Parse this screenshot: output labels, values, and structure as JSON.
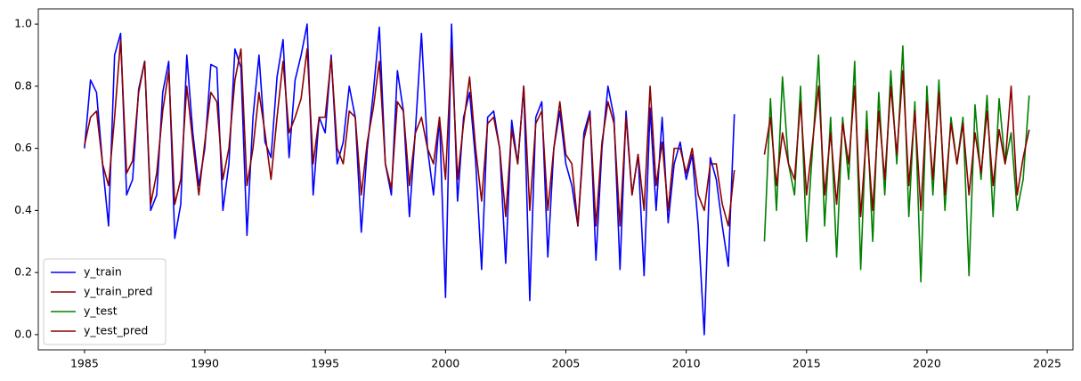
{
  "chart_data": {
    "type": "line",
    "xlim": [
      1983.08,
      2026.07
    ],
    "ylim": [
      -0.049,
      1.049
    ],
    "xticks": [
      1985,
      1990,
      1995,
      2000,
      2005,
      2010,
      2015,
      2020,
      2025
    ],
    "yticks": [
      {
        "value": 0,
        "label": "0.0"
      },
      0.2,
      0.4,
      0.6,
      0.8,
      {
        "value": 1,
        "label": "1.0"
      }
    ],
    "legend": "lower left",
    "series": [
      {
        "name": "y_train",
        "color": "#0000ff",
        "x": [
          1985,
          1985.25,
          1985.5,
          1985.75,
          1986,
          1986.25,
          1986.5,
          1986.75,
          1987,
          1987.25,
          1987.5,
          1987.75,
          1988,
          1988.25,
          1988.5,
          1988.75,
          1989,
          1989.25,
          1989.5,
          1989.75,
          1990,
          1990.25,
          1990.5,
          1990.75,
          1991,
          1991.25,
          1991.5,
          1991.75,
          1992,
          1992.25,
          1992.5,
          1992.75,
          1993,
          1993.25,
          1993.5,
          1993.75,
          1994,
          1994.25,
          1994.5,
          1994.75,
          1995,
          1995.25,
          1995.5,
          1995.75,
          1996,
          1996.25,
          1996.5,
          1996.75,
          1997,
          1997.25,
          1997.5,
          1997.75,
          1998,
          1998.25,
          1998.5,
          1998.75,
          1999,
          1999.25,
          1999.5,
          1999.75,
          2000,
          2000.25,
          2000.5,
          2000.75,
          2001,
          2001.25,
          2001.5,
          2001.75,
          2002,
          2002.25,
          2002.5,
          2002.75,
          2003,
          2003.25,
          2003.5,
          2003.75,
          2004,
          2004.25,
          2004.5,
          2004.75,
          2005,
          2005.25,
          2005.5,
          2005.75,
          2006,
          2006.25,
          2006.5,
          2006.75,
          2007,
          2007.25,
          2007.5,
          2007.75,
          2008,
          2008.25,
          2008.5,
          2008.75,
          2009,
          2009.25,
          2009.5,
          2009.75,
          2010,
          2010.25,
          2010.5,
          2010.75,
          2011,
          2011.25,
          2011.5,
          2011.75,
          2012
        ],
        "values": [
          0.6,
          0.82,
          0.78,
          0.55,
          0.35,
          0.9,
          0.97,
          0.45,
          0.5,
          0.79,
          0.88,
          0.4,
          0.45,
          0.78,
          0.88,
          0.31,
          0.42,
          0.9,
          0.65,
          0.48,
          0.6,
          0.87,
          0.86,
          0.4,
          0.55,
          0.92,
          0.86,
          0.32,
          0.7,
          0.9,
          0.62,
          0.57,
          0.83,
          0.95,
          0.57,
          0.82,
          0.9,
          1.0,
          0.45,
          0.7,
          0.65,
          0.9,
          0.55,
          0.62,
          0.8,
          0.7,
          0.33,
          0.6,
          0.78,
          0.99,
          0.55,
          0.45,
          0.85,
          0.72,
          0.38,
          0.66,
          0.97,
          0.6,
          0.45,
          0.7,
          0.12,
          1.0,
          0.43,
          0.7,
          0.78,
          0.56,
          0.21,
          0.7,
          0.72,
          0.6,
          0.23,
          0.69,
          0.55,
          0.8,
          0.11,
          0.7,
          0.75,
          0.25,
          0.6,
          0.72,
          0.55,
          0.48,
          0.35,
          0.65,
          0.72,
          0.24,
          0.6,
          0.8,
          0.7,
          0.21,
          0.72,
          0.45,
          0.58,
          0.19,
          0.73,
          0.4,
          0.7,
          0.36,
          0.55,
          0.62,
          0.5,
          0.58,
          0.35,
          0.0,
          0.57,
          0.5,
          0.35,
          0.22,
          0.71
        ]
      },
      {
        "name": "y_train_pred",
        "color": "#8b0000",
        "x": [
          1985,
          1985.25,
          1985.5,
          1985.75,
          1986,
          1986.25,
          1986.5,
          1986.75,
          1987,
          1987.25,
          1987.5,
          1987.75,
          1988,
          1988.25,
          1988.5,
          1988.75,
          1989,
          1989.25,
          1989.5,
          1989.75,
          1990,
          1990.25,
          1990.5,
          1990.75,
          1991,
          1991.25,
          1991.5,
          1991.75,
          1992,
          1992.25,
          1992.5,
          1992.75,
          1993,
          1993.25,
          1993.5,
          1993.75,
          1994,
          1994.25,
          1994.5,
          1994.75,
          1995,
          1995.25,
          1995.5,
          1995.75,
          1996,
          1996.25,
          1996.5,
          1996.75,
          1997,
          1997.25,
          1997.5,
          1997.75,
          1998,
          1998.25,
          1998.5,
          1998.75,
          1999,
          1999.25,
          1999.5,
          1999.75,
          2000,
          2000.25,
          2000.5,
          2000.75,
          2001,
          2001.25,
          2001.5,
          2001.75,
          2002,
          2002.25,
          2002.5,
          2002.75,
          2003,
          2003.25,
          2003.5,
          2003.75,
          2004,
          2004.25,
          2004.5,
          2004.75,
          2005,
          2005.25,
          2005.5,
          2005.75,
          2006,
          2006.25,
          2006.5,
          2006.75,
          2007,
          2007.25,
          2007.5,
          2007.75,
          2008,
          2008.25,
          2008.5,
          2008.75,
          2009,
          2009.25,
          2009.5,
          2009.75,
          2010,
          2010.25,
          2010.5,
          2010.75,
          2011,
          2011.25,
          2011.5,
          2011.75,
          2012
        ],
        "values": [
          0.61,
          0.7,
          0.72,
          0.55,
          0.48,
          0.7,
          0.95,
          0.52,
          0.56,
          0.78,
          0.88,
          0.42,
          0.52,
          0.72,
          0.85,
          0.42,
          0.5,
          0.8,
          0.62,
          0.45,
          0.62,
          0.78,
          0.75,
          0.5,
          0.6,
          0.82,
          0.92,
          0.48,
          0.6,
          0.78,
          0.65,
          0.5,
          0.7,
          0.88,
          0.65,
          0.7,
          0.76,
          0.92,
          0.55,
          0.7,
          0.7,
          0.89,
          0.6,
          0.55,
          0.72,
          0.7,
          0.45,
          0.62,
          0.73,
          0.88,
          0.55,
          0.47,
          0.75,
          0.72,
          0.48,
          0.65,
          0.7,
          0.6,
          0.55,
          0.7,
          0.5,
          0.92,
          0.5,
          0.68,
          0.83,
          0.6,
          0.43,
          0.68,
          0.7,
          0.6,
          0.38,
          0.66,
          0.55,
          0.8,
          0.4,
          0.68,
          0.72,
          0.4,
          0.6,
          0.75,
          0.58,
          0.55,
          0.35,
          0.63,
          0.71,
          0.35,
          0.62,
          0.75,
          0.68,
          0.35,
          0.7,
          0.45,
          0.58,
          0.4,
          0.8,
          0.48,
          0.62,
          0.4,
          0.6,
          0.6,
          0.52,
          0.6,
          0.45,
          0.4,
          0.55,
          0.55,
          0.42,
          0.35,
          0.53
        ]
      },
      {
        "name": "y_test",
        "color": "#008000",
        "x": [
          2013.25,
          2013.5,
          2013.75,
          2014,
          2014.25,
          2014.5,
          2014.75,
          2015,
          2015.25,
          2015.5,
          2015.75,
          2016,
          2016.25,
          2016.5,
          2016.75,
          2017,
          2017.25,
          2017.5,
          2017.75,
          2018,
          2018.25,
          2018.5,
          2018.75,
          2019,
          2019.25,
          2019.5,
          2019.75,
          2020,
          2020.25,
          2020.5,
          2020.75,
          2021,
          2021.25,
          2021.5,
          2021.75,
          2022,
          2022.25,
          2022.5,
          2022.75,
          2023,
          2023.25,
          2023.5,
          2023.75,
          2024,
          2024.25
        ],
        "values": [
          0.3,
          0.76,
          0.4,
          0.83,
          0.55,
          0.45,
          0.8,
          0.3,
          0.6,
          0.9,
          0.35,
          0.7,
          0.25,
          0.7,
          0.5,
          0.88,
          0.21,
          0.72,
          0.3,
          0.78,
          0.45,
          0.85,
          0.55,
          0.93,
          0.38,
          0.75,
          0.17,
          0.8,
          0.45,
          0.82,
          0.4,
          0.7,
          0.55,
          0.7,
          0.19,
          0.74,
          0.5,
          0.77,
          0.38,
          0.76,
          0.55,
          0.65,
          0.4,
          0.5,
          0.77
        ]
      },
      {
        "name": "y_test_pred",
        "color": "#8b0000",
        "x": [
          2013.25,
          2013.5,
          2013.75,
          2014,
          2014.25,
          2014.5,
          2014.75,
          2015,
          2015.25,
          2015.5,
          2015.75,
          2016,
          2016.25,
          2016.5,
          2016.75,
          2017,
          2017.25,
          2017.5,
          2017.75,
          2018,
          2018.25,
          2018.5,
          2018.75,
          2019,
          2019.25,
          2019.5,
          2019.75,
          2020,
          2020.25,
          2020.5,
          2020.75,
          2021,
          2021.25,
          2021.5,
          2021.75,
          2022,
          2022.25,
          2022.5,
          2022.75,
          2023,
          2023.25,
          2023.5,
          2023.75,
          2024,
          2024.25
        ],
        "values": [
          0.58,
          0.7,
          0.48,
          0.65,
          0.55,
          0.5,
          0.75,
          0.45,
          0.62,
          0.8,
          0.45,
          0.65,
          0.42,
          0.68,
          0.55,
          0.8,
          0.38,
          0.66,
          0.4,
          0.72,
          0.5,
          0.8,
          0.58,
          0.85,
          0.48,
          0.72,
          0.4,
          0.75,
          0.5,
          0.78,
          0.45,
          0.68,
          0.55,
          0.68,
          0.45,
          0.65,
          0.52,
          0.72,
          0.48,
          0.66,
          0.55,
          0.8,
          0.45,
          0.57,
          0.66
        ]
      }
    ]
  }
}
